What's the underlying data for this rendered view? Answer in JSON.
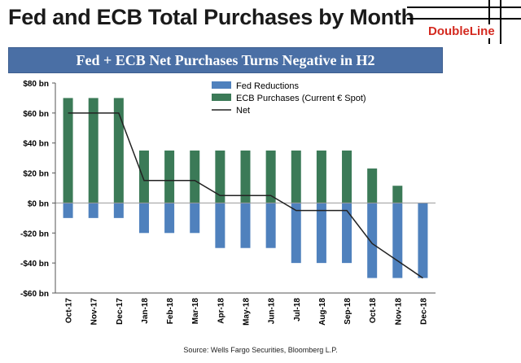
{
  "header": {
    "title": "Fed and ECB Total Purchases by Month",
    "logo_text": "DoubleLine"
  },
  "banner": {
    "text": "Fed + ECB Net Purchases Turns Negative in H2"
  },
  "source": "Source: Wells Fargo Securities, Bloomberg L.P.",
  "chart_data": {
    "type": "bar",
    "title": "Fed + ECB Net Purchases Turns Negative in H2",
    "categories": [
      "Oct-17",
      "Nov-17",
      "Dec-17",
      "Jan-18",
      "Feb-18",
      "Mar-18",
      "Apr-18",
      "May-18",
      "Jun-18",
      "Jul-18",
      "Aug-18",
      "Sep-18",
      "Oct-18",
      "Nov-18",
      "Dec-18"
    ],
    "series": [
      {
        "name": "Fed Reductions",
        "kind": "bar",
        "color": "#4f81bd",
        "values": [
          -10,
          -10,
          -10,
          -20,
          -20,
          -20,
          -30,
          -30,
          -30,
          -40,
          -40,
          -40,
          -50,
          -50,
          -50
        ]
      },
      {
        "name": "ECB Purchases (Current € Spot)",
        "kind": "bar",
        "color": "#3b7a57",
        "values": [
          70,
          70,
          70,
          35,
          35,
          35,
          35,
          35,
          35,
          35,
          35,
          35,
          23,
          11.5,
          0
        ]
      },
      {
        "name": "Net",
        "kind": "line",
        "color": "#222222",
        "values": [
          60,
          60,
          60,
          15,
          15,
          15,
          5,
          5,
          5,
          -5,
          -5,
          -5,
          -27,
          -38.5,
          -50
        ]
      }
    ],
    "ylim": [
      -60,
      80
    ],
    "yticks": [
      80,
      60,
      40,
      20,
      0,
      -20,
      -40,
      -60
    ],
    "ytick_labels": [
      "$80 bn",
      "$60 bn",
      "$40 bn",
      "$20 bn",
      "$0 bn",
      "-$20 bn",
      "-$40 bn",
      "-$60 bn"
    ],
    "grid": false,
    "legend_position": "top-center"
  }
}
